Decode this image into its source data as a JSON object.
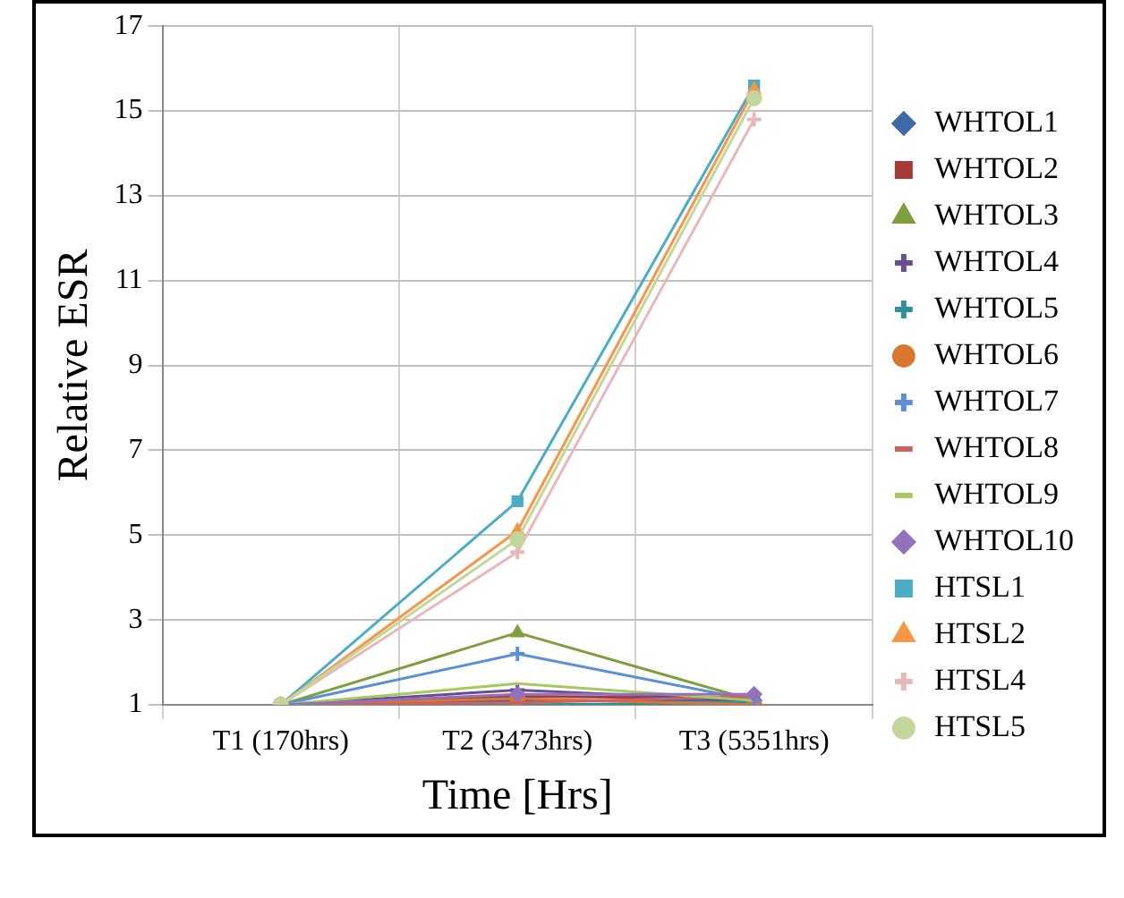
{
  "chart_data": {
    "type": "line",
    "xlabel": "Time [Hrs]",
    "ylabel": "Relative ESR",
    "categories": [
      "T1 (170hrs)",
      "T2 (3473hrs)",
      "T3 (5351hrs)"
    ],
    "ylim": [
      1,
      17
    ],
    "yticks": [
      1,
      3,
      5,
      7,
      9,
      11,
      13,
      15,
      17
    ],
    "grid": true,
    "legend": "right",
    "line_style": "solid",
    "series": [
      {
        "name": "WHTOL1",
        "color": "#3e6aa8",
        "marker": "diamond",
        "values": [
          1,
          1.1,
          1.1
        ]
      },
      {
        "name": "WHTOL2",
        "color": "#a33c38",
        "marker": "square",
        "values": [
          1,
          1.2,
          1.15
        ]
      },
      {
        "name": "WHTOL3",
        "color": "#7f9f3f",
        "marker": "triangle",
        "values": [
          1,
          2.7,
          1.1
        ]
      },
      {
        "name": "WHTOL4",
        "color": "#6b4d91",
        "marker": "cross",
        "values": [
          1,
          1.35,
          1.1
        ]
      },
      {
        "name": "WHTOL5",
        "color": "#2f8f9f",
        "marker": "cross",
        "values": [
          1,
          1,
          1.05
        ]
      },
      {
        "name": "WHTOL6",
        "color": "#d9772f",
        "marker": "circle",
        "values": [
          1,
          1.15,
          1
        ]
      },
      {
        "name": "WHTOL7",
        "color": "#5b8fd6",
        "marker": "cross",
        "values": [
          1,
          2.2,
          1.1
        ]
      },
      {
        "name": "WHTOL8",
        "color": "#d0605a",
        "marker": "none",
        "values": [
          1,
          1.05,
          1.2
        ]
      },
      {
        "name": "WHTOL9",
        "color": "#a5c95f",
        "marker": "none",
        "values": [
          1,
          1.5,
          1.1
        ]
      },
      {
        "name": "WHTOL10",
        "color": "#9272ba",
        "marker": "diamond",
        "values": [
          1,
          1.25,
          1.25
        ]
      },
      {
        "name": "HTSL1",
        "color": "#4bacc6",
        "marker": "square",
        "values": [
          1,
          5.8,
          15.6
        ]
      },
      {
        "name": "HTSL2",
        "color": "#f79646",
        "marker": "triangle",
        "values": [
          1,
          5.1,
          15.5
        ]
      },
      {
        "name": "HTSL4",
        "color": "#e6b9b8",
        "marker": "cross",
        "values": [
          1,
          4.6,
          14.8
        ]
      },
      {
        "name": "HTSL5",
        "color": "#c3d69b",
        "marker": "circle",
        "values": [
          1,
          4.9,
          15.3
        ]
      }
    ]
  }
}
